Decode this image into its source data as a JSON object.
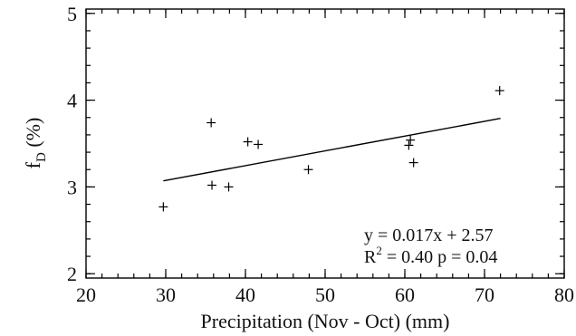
{
  "chart_data": {
    "type": "scatter",
    "title": "",
    "xlabel": "Precipitation (Nov - Oct) (mm)",
    "ylabel": {
      "base": "f",
      "sub": "D",
      "rest": " (%)"
    },
    "xlim": [
      20,
      80
    ],
    "ylim": [
      1.95,
      5.05
    ],
    "x_ticks": [
      20,
      30,
      40,
      50,
      60,
      70,
      80
    ],
    "y_ticks": [
      2,
      3,
      4,
      5
    ],
    "x_minor_step": 2,
    "y_minor_step": 0.2,
    "grid": false,
    "marker": "plus",
    "points": [
      {
        "x": 29.7,
        "y": 2.77
      },
      {
        "x": 35.7,
        "y": 3.74
      },
      {
        "x": 35.8,
        "y": 3.02
      },
      {
        "x": 37.9,
        "y": 3.0
      },
      {
        "x": 40.3,
        "y": 3.52
      },
      {
        "x": 41.6,
        "y": 3.49
      },
      {
        "x": 47.9,
        "y": 3.2
      },
      {
        "x": 60.5,
        "y": 3.48
      },
      {
        "x": 60.7,
        "y": 3.54
      },
      {
        "x": 61.1,
        "y": 3.28
      },
      {
        "x": 71.9,
        "y": 4.11
      }
    ],
    "trendline": {
      "x": [
        29.7,
        72.0
      ],
      "y": [
        3.07,
        3.79
      ]
    },
    "annotation": {
      "equation": "y = 0.017x + 2.57",
      "r2_base": "R",
      "r2_sup": "2",
      "r2_rest": " = 0.40  p = 0.04"
    }
  }
}
